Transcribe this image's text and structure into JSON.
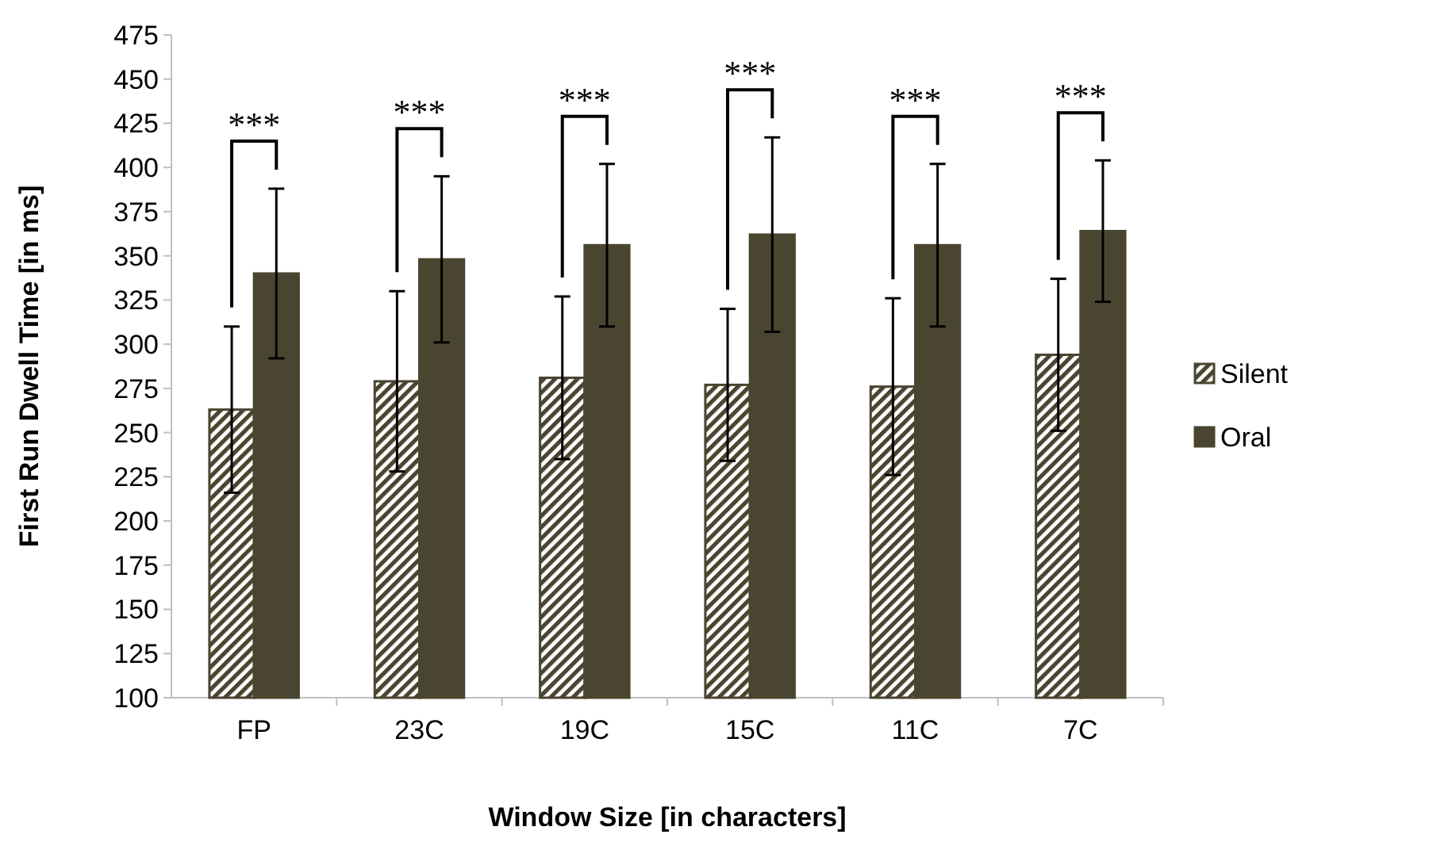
{
  "chart_data": {
    "type": "bar",
    "xlabel": "Window Size [in characters]",
    "ylabel": "First Run Dwell Time [in ms]",
    "categories": [
      "FP",
      "23C",
      "19C",
      "15C",
      "11C",
      "7C"
    ],
    "series": [
      {
        "name": "Silent",
        "color": "#4a4530",
        "values": [
          263,
          279,
          281,
          277,
          276,
          294
        ],
        "errors": [
          47,
          51,
          46,
          43,
          50,
          43
        ]
      },
      {
        "name": "Oral",
        "color": "#4a4530",
        "values": [
          340,
          348,
          356,
          362,
          356,
          364
        ],
        "errors": [
          48,
          47,
          46,
          55,
          46,
          40
        ]
      }
    ],
    "ylim": [
      100,
      475
    ],
    "yticks": [
      100,
      125,
      150,
      175,
      200,
      225,
      250,
      275,
      300,
      325,
      350,
      375,
      400,
      425,
      450,
      475
    ],
    "grid": false,
    "legend": "right",
    "annotations": [
      "***",
      "***",
      "***",
      "***",
      "***",
      "***"
    ]
  }
}
